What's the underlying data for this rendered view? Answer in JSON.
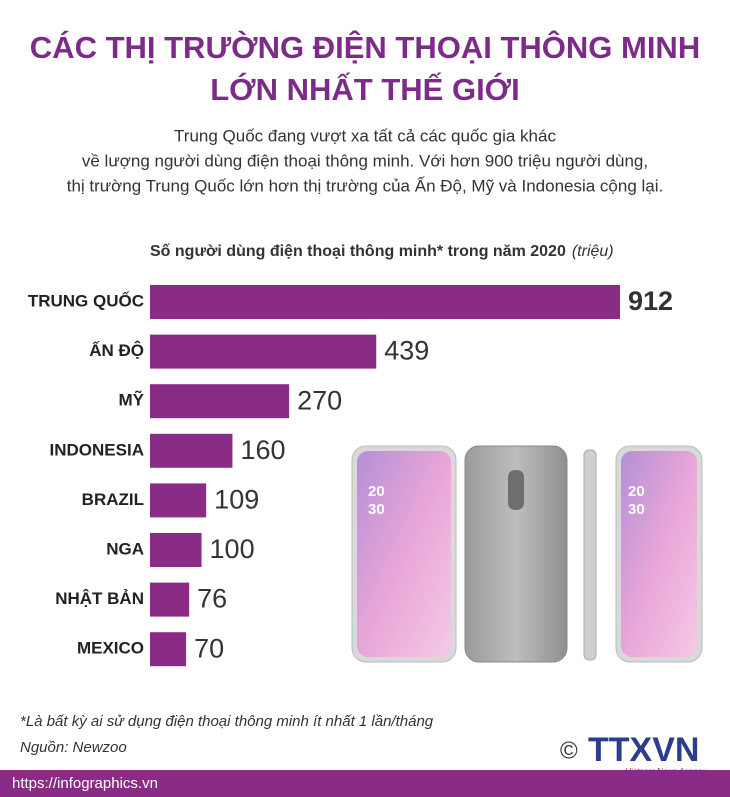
{
  "chart_data": {
    "type": "bar",
    "title_lines": [
      "CÁC THỊ TRƯỜNG ĐIỆN THOẠI THÔNG MINH",
      "LỚN NHẤT THẾ GIỚI"
    ],
    "subtitle_lines": [
      "Trung Quốc đang vượt xa tất cả các quốc gia khác",
      "về lượng người dùng điện thoại thông minh. Với hơn 900 triệu người dùng,",
      "thị trường Trung Quốc lớn hơn thị trường của Ấn Độ, Mỹ và Indonesia cộng lại."
    ],
    "axis_title": "Số người dùng điện thoại thông minh* trong năm 2020",
    "axis_unit": "(triệu)",
    "categories": [
      "TRUNG QUỐC",
      "ẤN ĐỘ",
      "MỸ",
      "INDONESIA",
      "BRAZIL",
      "NGA",
      "NHẬT BẢN",
      "MEXICO"
    ],
    "values": [
      912,
      439,
      270,
      160,
      109,
      100,
      76,
      70
    ],
    "color": "#8a2c86",
    "footnote": "*Là bất kỳ ai sử dụng điện thoại thông minh ít nhất 1 lần/tháng",
    "source": "Nguồn: Newzoo",
    "url": "https://infographics.vn",
    "copyright": "©",
    "logo": "TTXVN",
    "logo_subtitle": "Vietnam News Agency",
    "phone_time": [
      "20",
      "30"
    ]
  }
}
